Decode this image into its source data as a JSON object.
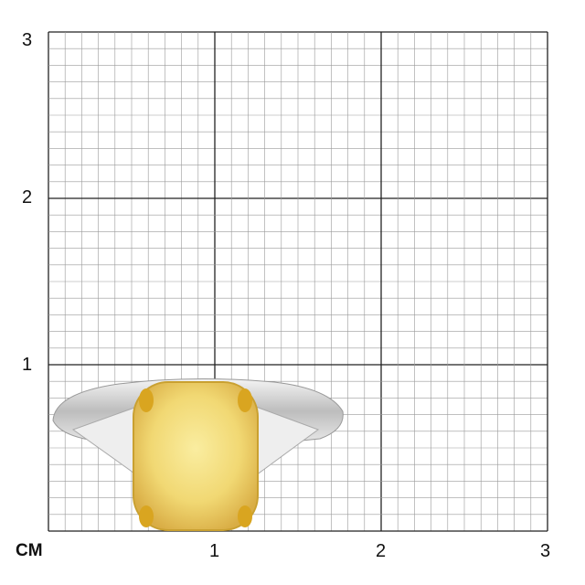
{
  "unit_label": "CM",
  "x_ticks": [
    "1",
    "2",
    "3"
  ],
  "y_ticks": [
    "1",
    "2",
    "3"
  ],
  "grid": {
    "range_cm": 3,
    "subdivisions_per_cm": 10
  },
  "colors": {
    "gem": "#f3dc7a",
    "prongs": "#d9a520",
    "band": "#d8d8d8",
    "grid_minor": "#9a9a9a",
    "grid_major": "#222222"
  }
}
